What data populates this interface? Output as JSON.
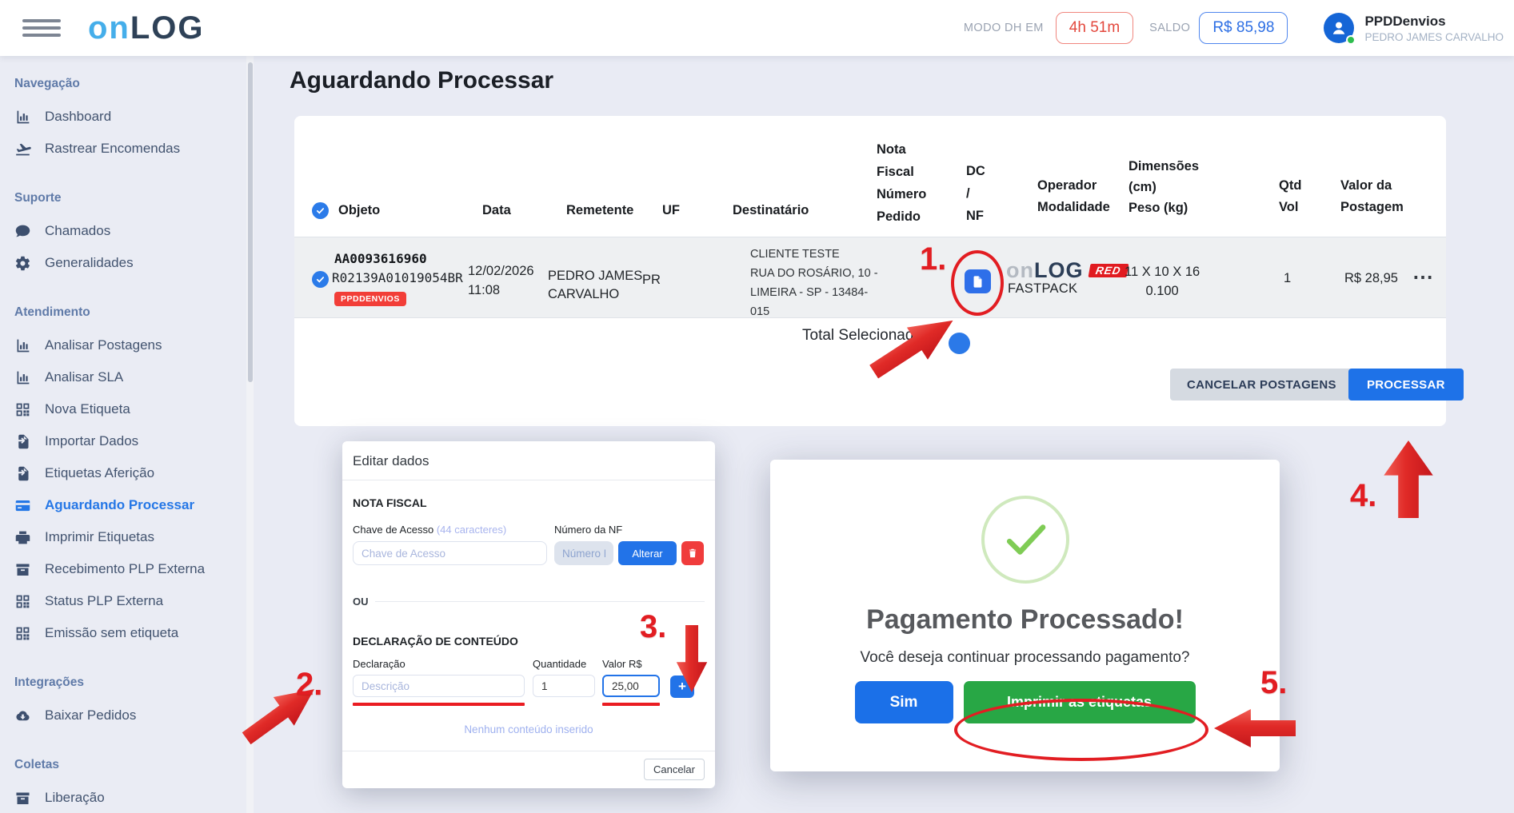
{
  "topbar": {
    "logo_part1": "on",
    "logo_part2": "LOG",
    "mode_label": "MODO DH EM",
    "mode_value": "4h 51m",
    "balance_label": "SALDO",
    "balance_value": "R$ 85,98",
    "user": {
      "account": "PPDDenvios",
      "name": "PEDRO JAMES CARVALHO"
    }
  },
  "sidebar": {
    "sections": [
      {
        "title": "Navegação",
        "items": [
          {
            "label": "Dashboard",
            "icon": "chart-bar-icon"
          },
          {
            "label": "Rastrear Encomendas",
            "icon": "plane-icon"
          }
        ]
      },
      {
        "title": "Suporte",
        "items": [
          {
            "label": "Chamados",
            "icon": "comment-icon"
          },
          {
            "label": "Generalidades",
            "icon": "gear-icon"
          }
        ]
      },
      {
        "title": "Atendimento",
        "items": [
          {
            "label": "Analisar Postagens",
            "icon": "chart-bar-icon"
          },
          {
            "label": "Analisar SLA",
            "icon": "chart-bar-icon"
          },
          {
            "label": "Nova Etiqueta",
            "icon": "qrcode-icon"
          },
          {
            "label": "Importar Dados",
            "icon": "file-import-icon"
          },
          {
            "label": "Etiquetas Aferição",
            "icon": "file-import-icon"
          },
          {
            "label": "Aguardando Processar",
            "icon": "credit-card-icon",
            "active": true
          },
          {
            "label": "Imprimir Etiquetas",
            "icon": "printer-icon"
          },
          {
            "label": "Recebimento PLP Externa",
            "icon": "box-icon"
          },
          {
            "label": "Status PLP Externa",
            "icon": "qrcode-icon"
          },
          {
            "label": "Emissão sem etiqueta",
            "icon": "qrcode-icon"
          }
        ]
      },
      {
        "title": "Integrações",
        "items": [
          {
            "label": "Baixar Pedidos",
            "icon": "cloud-download-icon"
          }
        ]
      },
      {
        "title": "Coletas",
        "items": [
          {
            "label": "Liberação",
            "icon": "box-icon"
          }
        ]
      }
    ]
  },
  "page": {
    "title": "Aguardando Processar"
  },
  "table": {
    "headers": {
      "objeto": "Objeto",
      "data": "Data",
      "remetente": "Remetente",
      "uf": "UF",
      "destinatario": "Destinatário",
      "nota_fiscal": "Nota\nFiscal\nNúmero\nPedido",
      "dc_nf": "DC\n/\nNF",
      "operador": "Operador\nModalidade",
      "dimensoes": "Dimensões\n(cm)\nPeso (kg)",
      "qtd": "Qtd\nVol",
      "valor": "Valor da\nPostagem"
    },
    "row": {
      "objeto_code": "AA0093616960",
      "objeto_tracking": "R02139A01019054BR",
      "objeto_badge": "PPDDENVIOS",
      "date": "12/02/2026",
      "time": "11:08",
      "remetente": "PEDRO JAMES CARVALHO",
      "uf": "PR",
      "destinatario": "CLIENTE TESTE\nRUA DO ROSÁRIO, 10 -\nLIMEIRA - SP - 13484-\n015",
      "dc_nf_icon": "file-icon",
      "operador_on": "on",
      "operador_log": "LOG",
      "operador_red": "RED",
      "modalidade": "FASTPACK",
      "dimensoes": "11 X 10 X 16",
      "peso": "0.100",
      "qtd_vol": "1",
      "valor": "R$ 28,95",
      "menu_icon": "ellipsis-icon"
    },
    "total_label": "Total Selecionado",
    "actions": {
      "cancel": "CANCELAR POSTAGENS",
      "process": "PROCESSAR"
    }
  },
  "edit_modal": {
    "title": "Editar dados",
    "nota_fiscal_title": "NOTA FISCAL",
    "chave_label": "Chave de Acesso",
    "chave_hint": "(44 caracteres)",
    "chave_placeholder": "Chave de Acesso",
    "nf_label": "Número da NF",
    "nf_placeholder": "Número NF",
    "alterar_button": "Alterar",
    "ou_label": "OU",
    "declaracao_title": "DECLARAÇÃO DE CONTEÚDO",
    "declaracao_label": "Declaração",
    "quantidade_label": "Quantidade",
    "valor_label": "Valor R$",
    "declaracao_placeholder": "Descrição",
    "quantidade_value": "1",
    "valor_value": "25,00",
    "plus_button": "+",
    "empty_text": "Nenhum conteúdo inserido",
    "cancel_button": "Cancelar"
  },
  "payment_modal": {
    "title": "Pagamento Processado!",
    "subtitle": "Você deseja continuar processando pagamento?",
    "yes_button": "Sim",
    "print_button": "Imprimir as etiquetas"
  },
  "annotations": {
    "step1": "1.",
    "step2": "2.",
    "step3": "3.",
    "step4": "4.",
    "step5": "5."
  },
  "colors": {
    "accent_blue": "#2273e8",
    "annotation_red": "#e21d22",
    "success_green": "#28a745",
    "badge_red": "#f23e38",
    "timer_red": "#e3483d",
    "sidebar_active_blue": "#2577e6"
  }
}
